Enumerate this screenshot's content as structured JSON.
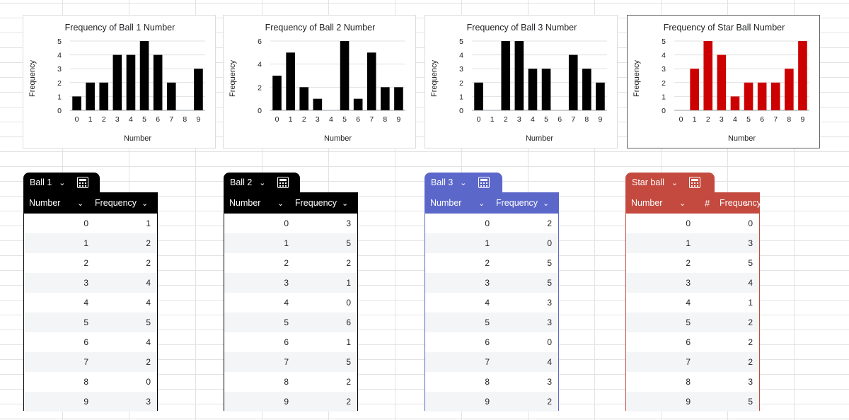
{
  "charts": [
    {
      "chart_data": {
        "type": "bar",
        "title": "Frequency of Ball 1 Number",
        "xlabel": "Number",
        "ylabel": "Frequency",
        "categories": [
          "0",
          "1",
          "2",
          "3",
          "4",
          "5",
          "6",
          "7",
          "8",
          "9"
        ],
        "values": [
          1,
          2,
          2,
          4,
          4,
          5,
          4,
          2,
          0,
          3
        ],
        "yticks": [
          "0",
          "1",
          "2",
          "3",
          "4",
          "5"
        ],
        "ylim": [
          0,
          5
        ],
        "color": "#000000",
        "grid": true,
        "legend": "none"
      }
    },
    {
      "chart_data": {
        "type": "bar",
        "title": "Frequency of Ball 2 Number",
        "xlabel": "Number",
        "ylabel": "Frequency",
        "categories": [
          "0",
          "1",
          "2",
          "3",
          "4",
          "5",
          "6",
          "7",
          "8",
          "9"
        ],
        "values": [
          3,
          5,
          2,
          1,
          0,
          6,
          1,
          5,
          2,
          2
        ],
        "yticks": [
          "0",
          "2",
          "4",
          "6"
        ],
        "ylim": [
          0,
          6
        ],
        "color": "#000000",
        "grid": true,
        "legend": "none"
      }
    },
    {
      "chart_data": {
        "type": "bar",
        "title": "Frequency of Ball 3 Number",
        "xlabel": "Number",
        "ylabel": "Frequency",
        "categories": [
          "0",
          "1",
          "2",
          "3",
          "4",
          "5",
          "6",
          "7",
          "8",
          "9"
        ],
        "values": [
          2,
          0,
          5,
          5,
          3,
          3,
          0,
          4,
          3,
          2
        ],
        "yticks": [
          "0",
          "1",
          "2",
          "3",
          "4",
          "5"
        ],
        "ylim": [
          0,
          5
        ],
        "color": "#000000",
        "grid": true,
        "legend": "none"
      }
    },
    {
      "chart_data": {
        "type": "bar",
        "title": "Frequency of Star Ball Number",
        "xlabel": "Number",
        "ylabel": "Frequency",
        "categories": [
          "0",
          "1",
          "2",
          "3",
          "4",
          "5",
          "6",
          "7",
          "8",
          "9"
        ],
        "values": [
          0,
          3,
          5,
          4,
          1,
          2,
          2,
          2,
          3,
          5
        ],
        "yticks": [
          "0",
          "1",
          "2",
          "3",
          "4",
          "5"
        ],
        "ylim": [
          0,
          5
        ],
        "color": "#cc0000",
        "grid": true,
        "legend": "none"
      }
    }
  ],
  "tables": [
    {
      "name": "Ball 1",
      "color": "#000000",
      "col1_header": "Number",
      "col2_header": "Frequency",
      "col2_type_icon": "",
      "rows": [
        [
          "0",
          "1"
        ],
        [
          "1",
          "2"
        ],
        [
          "2",
          "2"
        ],
        [
          "3",
          "4"
        ],
        [
          "4",
          "4"
        ],
        [
          "5",
          "5"
        ],
        [
          "6",
          "4"
        ],
        [
          "7",
          "2"
        ],
        [
          "8",
          "0"
        ],
        [
          "9",
          "3"
        ]
      ]
    },
    {
      "name": "Ball 2",
      "color": "#000000",
      "col1_header": "Number",
      "col2_header": "Frequency",
      "col2_type_icon": "",
      "rows": [
        [
          "0",
          "3"
        ],
        [
          "1",
          "5"
        ],
        [
          "2",
          "2"
        ],
        [
          "3",
          "1"
        ],
        [
          "4",
          "0"
        ],
        [
          "5",
          "6"
        ],
        [
          "6",
          "1"
        ],
        [
          "7",
          "5"
        ],
        [
          "8",
          "2"
        ],
        [
          "9",
          "2"
        ]
      ]
    },
    {
      "name": "Ball 3",
      "color": "#5b67c9",
      "col1_header": "Number",
      "col2_header": "Frequency",
      "col2_type_icon": "",
      "rows": [
        [
          "0",
          "2"
        ],
        [
          "1",
          "0"
        ],
        [
          "2",
          "5"
        ],
        [
          "3",
          "5"
        ],
        [
          "4",
          "3"
        ],
        [
          "5",
          "3"
        ],
        [
          "6",
          "0"
        ],
        [
          "7",
          "4"
        ],
        [
          "8",
          "3"
        ],
        [
          "9",
          "2"
        ]
      ]
    },
    {
      "name": "Star ball",
      "color": "#c44a3f",
      "col1_header": "Number",
      "col2_header": "Frequency",
      "col2_type_icon": "#",
      "rows": [
        [
          "0",
          "0"
        ],
        [
          "1",
          "3"
        ],
        [
          "2",
          "5"
        ],
        [
          "3",
          "4"
        ],
        [
          "4",
          "1"
        ],
        [
          "5",
          "2"
        ],
        [
          "6",
          "2"
        ],
        [
          "7",
          "2"
        ],
        [
          "8",
          "3"
        ],
        [
          "9",
          "5"
        ]
      ]
    }
  ],
  "icons": {
    "dropdown": "chevron-down-icon",
    "table_tools": "calculator-icon"
  }
}
